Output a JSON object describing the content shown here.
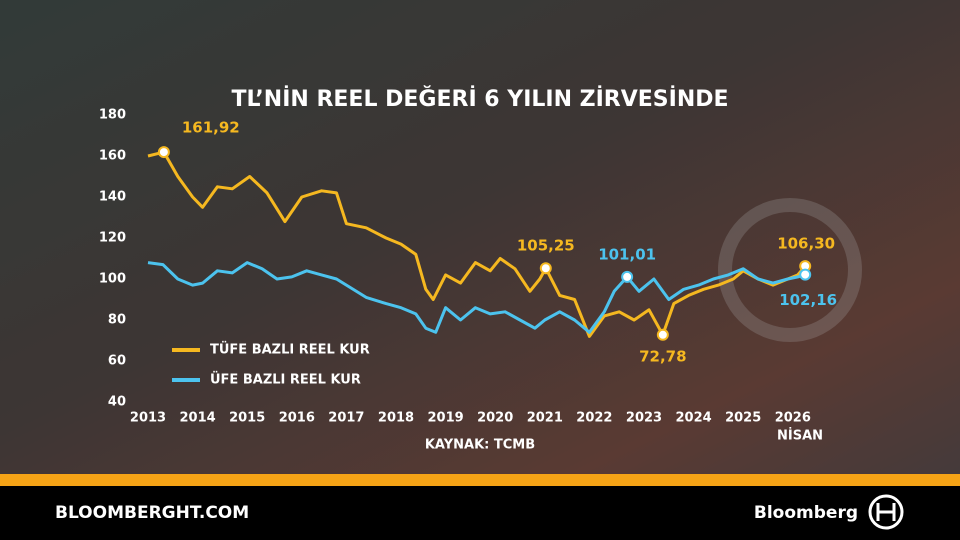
{
  "chart_data": {
    "type": "line",
    "title": "TL’NİN REEL DEĞERİ 6 YILIN ZİRVESİNDE",
    "source": "KAYNAK: TCMB",
    "x_note": "NİSAN",
    "xlim": [
      2013,
      2026.25
    ],
    "xticks": [
      2013,
      2014,
      2015,
      2016,
      2017,
      2018,
      2019,
      2020,
      2021,
      2022,
      2023,
      2024,
      2025,
      2026
    ],
    "ylim": [
      40,
      180
    ],
    "yticks": [
      40,
      60,
      80,
      100,
      120,
      140,
      160,
      180
    ],
    "series": [
      {
        "name": "TÜFE BAZLI REEL KUR",
        "color": "#f5b820",
        "x": [
          2013,
          2013.32,
          2013.6,
          2013.9,
          2014.1,
          2014.4,
          2014.7,
          2015.05,
          2015.4,
          2015.76,
          2016.1,
          2016.5,
          2016.8,
          2017.0,
          2017.4,
          2017.8,
          2018.1,
          2018.4,
          2018.6,
          2018.75,
          2019.0,
          2019.3,
          2019.6,
          2019.9,
          2020.1,
          2020.4,
          2020.7,
          2020.9,
          2021.02,
          2021.3,
          2021.6,
          2021.9,
          2022.2,
          2022.5,
          2022.8,
          2023.1,
          2023.38,
          2023.6,
          2023.9,
          2024.2,
          2024.5,
          2024.8,
          2025.0,
          2025.3,
          2025.6,
          2025.9,
          2026.1,
          2026.25
        ],
        "values": [
          160,
          161.92,
          150,
          140,
          135,
          145,
          144,
          150,
          142,
          128,
          140,
          143,
          142,
          127,
          125,
          120,
          117,
          112,
          95,
          90,
          102,
          98,
          108,
          104,
          110,
          105,
          94,
          100,
          105.25,
          92,
          90,
          72,
          82,
          84,
          80,
          85,
          72.78,
          88,
          92,
          95,
          97,
          100,
          104,
          100,
          97,
          100,
          102,
          106.3
        ]
      },
      {
        "name": "ÜFE BAZLI REEL KUR",
        "color": "#4cc3ee",
        "x": [
          2013,
          2013.3,
          2013.6,
          2013.9,
          2014.1,
          2014.4,
          2014.7,
          2015.0,
          2015.3,
          2015.6,
          2015.9,
          2016.2,
          2016.5,
          2016.8,
          2017.0,
          2017.4,
          2017.8,
          2018.1,
          2018.4,
          2018.6,
          2018.8,
          2019.0,
          2019.3,
          2019.6,
          2019.9,
          2020.2,
          2020.5,
          2020.8,
          2021.0,
          2021.3,
          2021.6,
          2021.9,
          2022.2,
          2022.4,
          2022.66,
          2022.9,
          2023.2,
          2023.5,
          2023.8,
          2024.1,
          2024.4,
          2024.7,
          2025.0,
          2025.3,
          2025.6,
          2025.9,
          2026.1,
          2026.25
        ],
        "values": [
          108,
          107,
          100,
          97,
          98,
          104,
          103,
          108,
          105,
          100,
          101,
          104,
          102,
          100,
          97,
          91,
          88,
          86,
          83,
          76,
          74,
          86,
          80,
          86,
          83,
          84,
          80,
          76,
          80,
          84,
          80,
          74,
          84,
          94,
          101.01,
          94,
          100,
          90,
          95,
          97,
          100,
          102,
          105,
          100,
          98,
          100,
          101,
          102.16
        ]
      }
    ],
    "annotations": [
      {
        "series": 0,
        "x": 2013.32,
        "value": 161.92,
        "label": "161,92"
      },
      {
        "series": 0,
        "x": 2021.02,
        "value": 105.25,
        "label": "105,25"
      },
      {
        "series": 1,
        "x": 2022.66,
        "value": 101.01,
        "label": "101,01"
      },
      {
        "series": 0,
        "x": 2023.38,
        "value": 72.78,
        "label": "72,78"
      },
      {
        "series": 0,
        "x": 2026.25,
        "value": 106.3,
        "label": "106,30"
      },
      {
        "series": 1,
        "x": 2026.25,
        "value": 102.16,
        "label": "102,16"
      }
    ]
  },
  "footer": {
    "site": "BLOOMBERGHT.COM",
    "brand": "Bloomberg"
  }
}
